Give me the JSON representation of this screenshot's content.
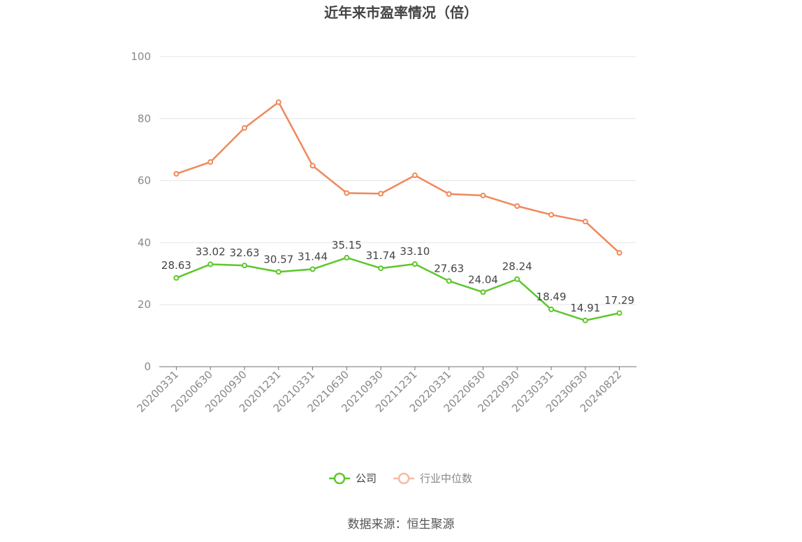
{
  "chart_data": {
    "type": "line",
    "title": "近年来市盈率情况（倍）",
    "categories": [
      "20200331",
      "20200630",
      "20200930",
      "20201231",
      "20210331",
      "20210630",
      "20210930",
      "20211231",
      "20220331",
      "20220630",
      "20220930",
      "20230331",
      "20230630",
      "20240822"
    ],
    "ylim": [
      0,
      100
    ],
    "yticks": [
      0,
      20,
      40,
      60,
      80,
      100
    ],
    "grid": true,
    "legend_position": "bottom",
    "series": [
      {
        "name": "公司",
        "color": "#5cc72b",
        "values": [
          28.63,
          33.02,
          32.63,
          30.57,
          31.44,
          35.15,
          31.74,
          33.1,
          27.63,
          24.04,
          28.24,
          18.49,
          14.91,
          17.29
        ],
        "labels": [
          "28.63",
          "33.02",
          "32.63",
          "30.57",
          "31.44",
          "35.15",
          "31.74",
          "33.10",
          "27.63",
          "24.04",
          "28.24",
          "18.49",
          "14.91",
          "17.29"
        ]
      },
      {
        "name": "行业中位数",
        "color": "#f0885a",
        "values": [
          62.2,
          66.0,
          77.0,
          85.3,
          64.8,
          56.0,
          55.8,
          61.7,
          55.7,
          55.2,
          51.8,
          49.0,
          46.8,
          36.7
        ]
      }
    ]
  },
  "source": "数据来源：恒生聚源",
  "colors": {
    "grid": "#e6e6e6",
    "axis": "#6e7079",
    "legend_inactive": "#f7b9a2"
  }
}
